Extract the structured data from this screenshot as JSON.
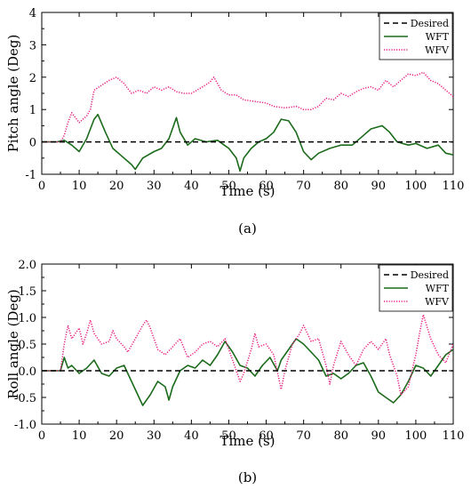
{
  "chart_data": [
    {
      "type": "line",
      "caption": "(a)",
      "xlabel": "Time (s)",
      "ylabel": "Pitch angle (Deg)",
      "xlim": [
        0,
        110
      ],
      "ylim": [
        -1,
        4
      ],
      "xticks": [
        0,
        10,
        20,
        30,
        40,
        50,
        60,
        70,
        80,
        90,
        100,
        110
      ],
      "yticks": [
        -1,
        0,
        1,
        2,
        3,
        4
      ],
      "ytick_labels": [
        "-1",
        "0",
        "1",
        "2",
        "3",
        "4"
      ],
      "legend_position": "top-right",
      "grid": false,
      "series": [
        {
          "name": "Desired",
          "color": "#000000",
          "style": "dashed",
          "points": [
            [
              0,
              0
            ],
            [
              110,
              0
            ]
          ]
        },
        {
          "name": "WFT",
          "color": "#1b6b1b",
          "style": "solid",
          "points": [
            [
              0,
              0
            ],
            [
              4,
              0
            ],
            [
              6,
              0.05
            ],
            [
              8,
              -0.1
            ],
            [
              10,
              -0.3
            ],
            [
              12,
              0.1
            ],
            [
              14,
              0.7
            ],
            [
              15,
              0.85
            ],
            [
              17,
              0.3
            ],
            [
              19,
              -0.2
            ],
            [
              21,
              -0.4
            ],
            [
              24,
              -0.7
            ],
            [
              25,
              -0.85
            ],
            [
              27,
              -0.5
            ],
            [
              30,
              -0.3
            ],
            [
              32,
              -0.2
            ],
            [
              34,
              0.1
            ],
            [
              36,
              0.75
            ],
            [
              37,
              0.3
            ],
            [
              39,
              -0.1
            ],
            [
              41,
              0.1
            ],
            [
              44,
              0.0
            ],
            [
              47,
              0.05
            ],
            [
              50,
              -0.2
            ],
            [
              52,
              -0.5
            ],
            [
              53,
              -0.9
            ],
            [
              54,
              -0.5
            ],
            [
              56,
              -0.2
            ],
            [
              58,
              0.0
            ],
            [
              60,
              0.1
            ],
            [
              62,
              0.3
            ],
            [
              64,
              0.7
            ],
            [
              66,
              0.65
            ],
            [
              68,
              0.3
            ],
            [
              70,
              -0.3
            ],
            [
              72,
              -0.55
            ],
            [
              74,
              -0.35
            ],
            [
              77,
              -0.2
            ],
            [
              80,
              -0.1
            ],
            [
              83,
              -0.1
            ],
            [
              86,
              0.2
            ],
            [
              88,
              0.4
            ],
            [
              91,
              0.5
            ],
            [
              93,
              0.3
            ],
            [
              95,
              0.0
            ],
            [
              98,
              -0.1
            ],
            [
              100,
              -0.05
            ],
            [
              103,
              -0.2
            ],
            [
              106,
              -0.1
            ],
            [
              108,
              -0.35
            ],
            [
              110,
              -0.4
            ]
          ]
        },
        {
          "name": "WFV",
          "color": "#e8187d",
          "style": "dotted",
          "points": [
            [
              0,
              0
            ],
            [
              5,
              0
            ],
            [
              6,
              0.2
            ],
            [
              7,
              0.6
            ],
            [
              8,
              0.9
            ],
            [
              10,
              0.6
            ],
            [
              12,
              0.8
            ],
            [
              13,
              1.0
            ],
            [
              14,
              1.6
            ],
            [
              16,
              1.75
            ],
            [
              18,
              1.9
            ],
            [
              20,
              2.0
            ],
            [
              22,
              1.8
            ],
            [
              24,
              1.5
            ],
            [
              26,
              1.6
            ],
            [
              28,
              1.5
            ],
            [
              30,
              1.7
            ],
            [
              32,
              1.6
            ],
            [
              34,
              1.7
            ],
            [
              36,
              1.55
            ],
            [
              38,
              1.5
            ],
            [
              40,
              1.5
            ],
            [
              43,
              1.7
            ],
            [
              45,
              1.85
            ],
            [
              46,
              2.0
            ],
            [
              48,
              1.6
            ],
            [
              50,
              1.45
            ],
            [
              52,
              1.45
            ],
            [
              54,
              1.3
            ],
            [
              57,
              1.25
            ],
            [
              60,
              1.2
            ],
            [
              62,
              1.1
            ],
            [
              65,
              1.05
            ],
            [
              68,
              1.1
            ],
            [
              70,
              1.0
            ],
            [
              72,
              1.0
            ],
            [
              74,
              1.1
            ],
            [
              76,
              1.35
            ],
            [
              78,
              1.3
            ],
            [
              80,
              1.5
            ],
            [
              82,
              1.4
            ],
            [
              84,
              1.55
            ],
            [
              86,
              1.65
            ],
            [
              88,
              1.7
            ],
            [
              90,
              1.6
            ],
            [
              92,
              1.9
            ],
            [
              94,
              1.7
            ],
            [
              96,
              1.9
            ],
            [
              98,
              2.1
            ],
            [
              100,
              2.05
            ],
            [
              102,
              2.15
            ],
            [
              104,
              1.9
            ],
            [
              106,
              1.8
            ],
            [
              108,
              1.6
            ],
            [
              110,
              1.4
            ]
          ]
        }
      ]
    },
    {
      "type": "line",
      "caption": "(b)",
      "xlabel": "Time (s)",
      "ylabel": "Roll angle (Deg)",
      "xlim": [
        0,
        110
      ],
      "ylim": [
        -1.0,
        2.0
      ],
      "xticks": [
        0,
        10,
        20,
        30,
        40,
        50,
        60,
        70,
        80,
        90,
        100,
        110
      ],
      "yticks": [
        -1.0,
        -0.5,
        0.0,
        0.5,
        1.0,
        1.5,
        2.0
      ],
      "ytick_labels": [
        "-1.0",
        "-0.5",
        "0.0",
        "0.5",
        "1.0",
        "1.5",
        "2.0"
      ],
      "legend_position": "top-right",
      "grid": false,
      "series": [
        {
          "name": "Desired",
          "color": "#000000",
          "style": "dashed",
          "points": [
            [
              0,
              0
            ],
            [
              110,
              0
            ]
          ]
        },
        {
          "name": "WFT",
          "color": "#1b6b1b",
          "style": "solid",
          "points": [
            [
              0,
              0
            ],
            [
              4,
              0
            ],
            [
              5,
              0.0
            ],
            [
              6,
              0.25
            ],
            [
              7,
              0.05
            ],
            [
              8,
              0.1
            ],
            [
              10,
              -0.05
            ],
            [
              12,
              0.05
            ],
            [
              14,
              0.2
            ],
            [
              16,
              -0.05
            ],
            [
              18,
              -0.1
            ],
            [
              20,
              0.05
            ],
            [
              22,
              0.1
            ],
            [
              24,
              -0.2
            ],
            [
              26,
              -0.5
            ],
            [
              27,
              -0.65
            ],
            [
              29,
              -0.45
            ],
            [
              31,
              -0.2
            ],
            [
              33,
              -0.3
            ],
            [
              34,
              -0.55
            ],
            [
              35,
              -0.3
            ],
            [
              37,
              0.0
            ],
            [
              39,
              0.1
            ],
            [
              41,
              0.05
            ],
            [
              43,
              0.2
            ],
            [
              45,
              0.1
            ],
            [
              47,
              0.3
            ],
            [
              49,
              0.55
            ],
            [
              51,
              0.35
            ],
            [
              53,
              0.1
            ],
            [
              55,
              0.05
            ],
            [
              57,
              -0.1
            ],
            [
              59,
              0.1
            ],
            [
              61,
              0.25
            ],
            [
              63,
              0.0
            ],
            [
              64,
              0.2
            ],
            [
              66,
              0.4
            ],
            [
              68,
              0.6
            ],
            [
              70,
              0.5
            ],
            [
              72,
              0.35
            ],
            [
              74,
              0.2
            ],
            [
              76,
              -0.1
            ],
            [
              78,
              -0.05
            ],
            [
              80,
              -0.15
            ],
            [
              82,
              -0.05
            ],
            [
              84,
              0.1
            ],
            [
              86,
              0.15
            ],
            [
              88,
              -0.1
            ],
            [
              90,
              -0.4
            ],
            [
              92,
              -0.5
            ],
            [
              94,
              -0.6
            ],
            [
              96,
              -0.45
            ],
            [
              98,
              -0.2
            ],
            [
              100,
              0.1
            ],
            [
              102,
              0.05
            ],
            [
              104,
              -0.1
            ],
            [
              106,
              0.1
            ],
            [
              108,
              0.3
            ],
            [
              110,
              0.4
            ]
          ]
        },
        {
          "name": "WFV",
          "color": "#e8187d",
          "style": "dotted",
          "points": [
            [
              0,
              0
            ],
            [
              5,
              0
            ],
            [
              6,
              0.5
            ],
            [
              7,
              0.85
            ],
            [
              8,
              0.6
            ],
            [
              10,
              0.8
            ],
            [
              11,
              0.5
            ],
            [
              12,
              0.7
            ],
            [
              13,
              0.95
            ],
            [
              14,
              0.7
            ],
            [
              16,
              0.5
            ],
            [
              18,
              0.55
            ],
            [
              19,
              0.75
            ],
            [
              20,
              0.6
            ],
            [
              22,
              0.45
            ],
            [
              23,
              0.35
            ],
            [
              25,
              0.6
            ],
            [
              27,
              0.85
            ],
            [
              28,
              0.95
            ],
            [
              29,
              0.8
            ],
            [
              31,
              0.4
            ],
            [
              33,
              0.3
            ],
            [
              35,
              0.45
            ],
            [
              37,
              0.6
            ],
            [
              39,
              0.25
            ],
            [
              41,
              0.35
            ],
            [
              43,
              0.5
            ],
            [
              45,
              0.55
            ],
            [
              47,
              0.45
            ],
            [
              49,
              0.6
            ],
            [
              51,
              0.2
            ],
            [
              53,
              -0.2
            ],
            [
              54,
              -0.05
            ],
            [
              56,
              0.4
            ],
            [
              57,
              0.7
            ],
            [
              58,
              0.45
            ],
            [
              60,
              0.5
            ],
            [
              62,
              0.3
            ],
            [
              64,
              -0.35
            ],
            [
              65,
              0.0
            ],
            [
              67,
              0.5
            ],
            [
              69,
              0.7
            ],
            [
              70,
              0.85
            ],
            [
              72,
              0.55
            ],
            [
              74,
              0.6
            ],
            [
              76,
              0.1
            ],
            [
              77,
              -0.25
            ],
            [
              78,
              0.1
            ],
            [
              80,
              0.55
            ],
            [
              82,
              0.3
            ],
            [
              84,
              0.1
            ],
            [
              86,
              0.4
            ],
            [
              88,
              0.55
            ],
            [
              90,
              0.4
            ],
            [
              92,
              0.6
            ],
            [
              93,
              0.3
            ],
            [
              95,
              -0.1
            ],
            [
              96,
              -0.45
            ],
            [
              98,
              -0.3
            ],
            [
              100,
              0.3
            ],
            [
              101,
              0.7
            ],
            [
              102,
              1.05
            ],
            [
              104,
              0.6
            ],
            [
              106,
              0.3
            ],
            [
              108,
              0.15
            ],
            [
              110,
              0.5
            ]
          ]
        }
      ]
    }
  ]
}
